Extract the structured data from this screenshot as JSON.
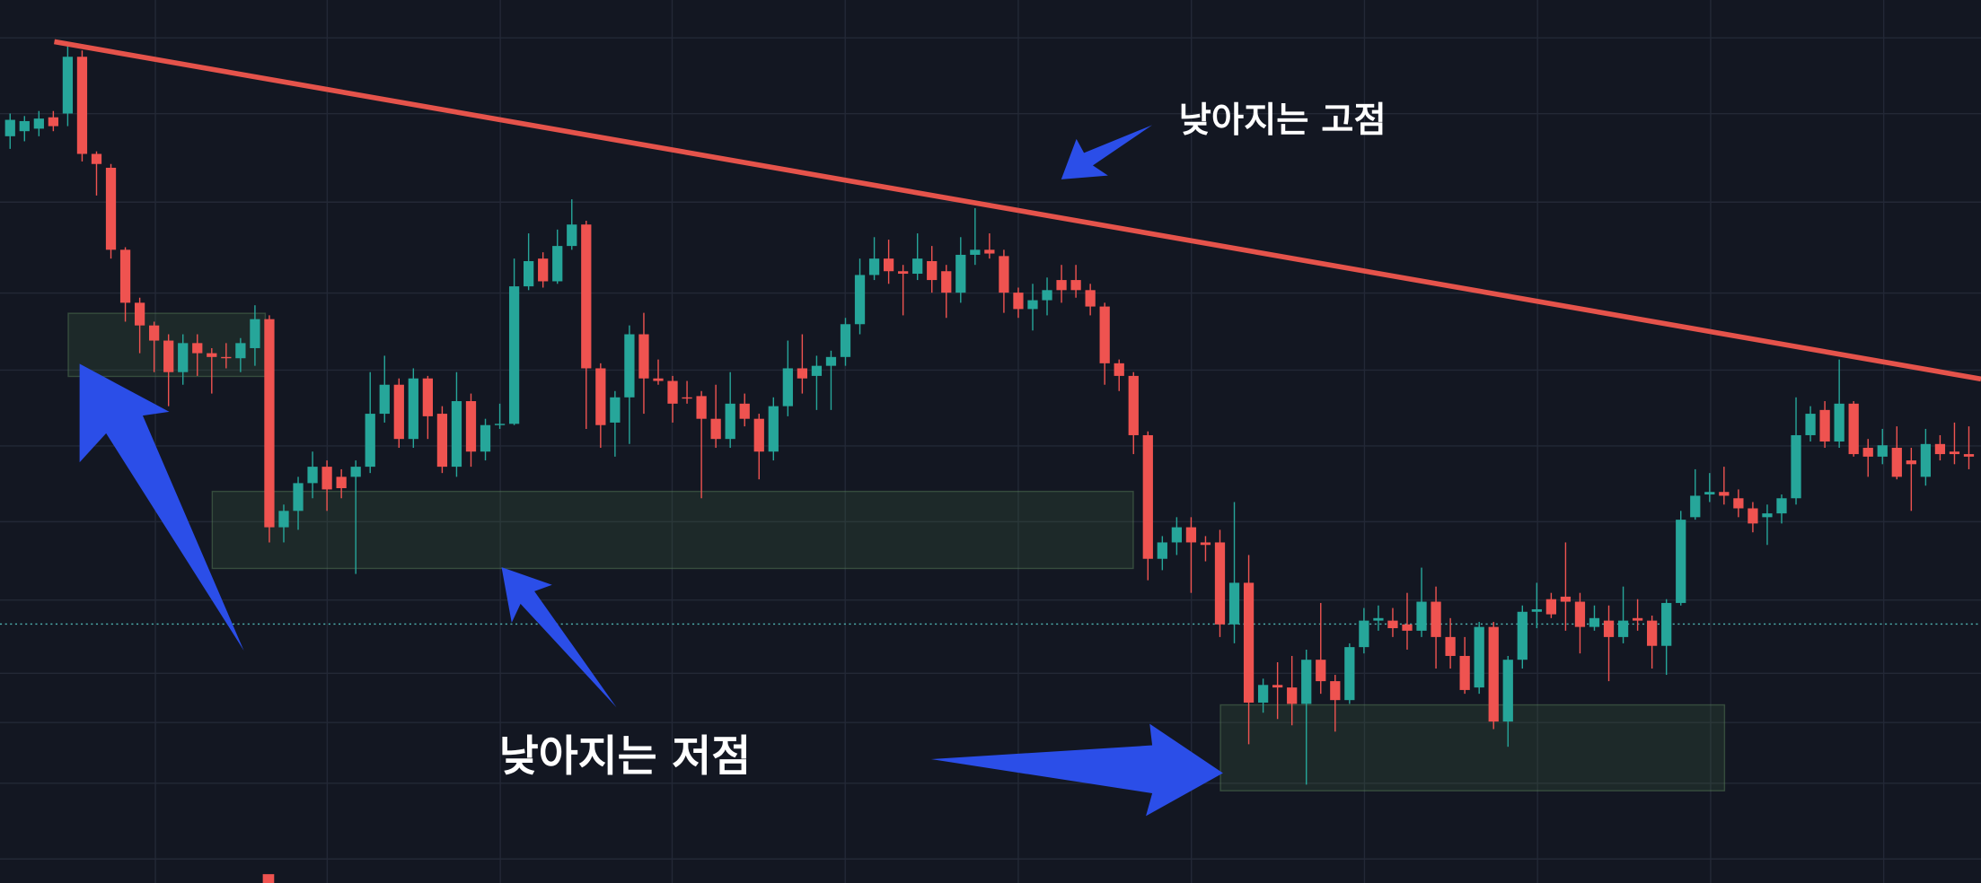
{
  "chart_data": {
    "type": "candlestick",
    "annotations": [
      "낮아지는 고점",
      "낮아지는 저점"
    ],
    "up_color": "#26a69a",
    "down_color": "#ef5350",
    "ylim": [
      0,
      700
    ],
    "open": [
      592,
      596,
      598,
      607,
      610,
      655,
      578,
      567,
      502,
      460,
      442,
      430,
      405,
      428,
      420,
      417,
      416,
      424,
      447,
      282,
      295,
      317,
      330,
      322,
      322,
      330,
      372,
      395,
      352,
      400,
      372,
      330,
      382,
      342,
      363,
      364,
      473,
      495,
      477,
      505,
      522,
      408,
      365,
      385,
      435,
      400,
      398,
      385,
      386,
      368,
      352,
      380,
      368,
      342,
      378,
      408,
      402,
      410,
      417,
      443,
      482,
      495,
      485,
      483,
      493,
      485,
      468,
      498,
      502,
      497,
      468,
      455,
      462,
      478,
      478,
      470,
      457,
      412,
      402,
      355,
      257,
      270,
      282,
      270,
      270,
      205,
      238,
      143,
      157,
      155,
      142,
      177,
      160,
      145,
      187,
      208,
      208,
      205,
      200,
      223,
      195,
      180,
      155,
      203,
      128,
      177,
      215,
      225,
      227,
      223,
      203,
      208,
      195,
      210,
      208,
      188,
      222,
      290,
      308,
      310,
      305,
      297,
      290,
      293,
      305,
      355,
      375,
      350,
      380,
      345,
      338,
      345,
      335,
      322,
      348,
      342,
      340
    ],
    "high": [
      610,
      608,
      612,
      612,
      665,
      660,
      580,
      570,
      504,
      464,
      445,
      435,
      435,
      435,
      424,
      428,
      432,
      458,
      450,
      300,
      322,
      342,
      335,
      328,
      335,
      405,
      418,
      400,
      408,
      402,
      378,
      405,
      388,
      368,
      380,
      495,
      515,
      500,
      518,
      542,
      525,
      412,
      390,
      442,
      452,
      415,
      402,
      398,
      390,
      395,
      405,
      388,
      372,
      385,
      430,
      435,
      418,
      422,
      448,
      495,
      512,
      510,
      490,
      515,
      505,
      490,
      512,
      535,
      515,
      502,
      472,
      475,
      480,
      490,
      490,
      475,
      460,
      415,
      405,
      358,
      275,
      290,
      290,
      275,
      280,
      302,
      260,
      162,
      175,
      180,
      185,
      222,
      165,
      190,
      218,
      220,
      218,
      230,
      250,
      235,
      210,
      195,
      207,
      207,
      180,
      220,
      238,
      230,
      270,
      230,
      220,
      220,
      235,
      225,
      212,
      225,
      295,
      328,
      325,
      330,
      312,
      302,
      300,
      308,
      385,
      378,
      382,
      415,
      382,
      352,
      360,
      362,
      345,
      360,
      355,
      365,
      362
    ],
    "low": [
      582,
      588,
      592,
      596,
      600,
      572,
      545,
      495,
      445,
      420,
      405,
      378,
      395,
      402,
      388,
      408,
      405,
      410,
      270,
      270,
      280,
      305,
      295,
      305,
      245,
      325,
      365,
      345,
      345,
      352,
      325,
      322,
      330,
      335,
      360,
      363,
      470,
      472,
      475,
      502,
      360,
      345,
      338,
      348,
      372,
      395,
      365,
      380,
      305,
      345,
      345,
      362,
      320,
      335,
      370,
      388,
      375,
      375,
      410,
      435,
      478,
      475,
      450,
      478,
      468,
      448,
      460,
      490,
      495,
      452,
      448,
      438,
      450,
      460,
      464,
      450,
      395,
      390,
      340,
      240,
      248,
      260,
      230,
      255,
      195,
      190,
      110,
      135,
      130,
      125,
      78,
      150,
      120,
      142,
      182,
      200,
      195,
      185,
      195,
      170,
      170,
      150,
      150,
      122,
      108,
      170,
      202,
      210,
      200,
      182,
      200,
      160,
      190,
      200,
      170,
      165,
      220,
      288,
      302,
      300,
      290,
      278,
      268,
      285,
      300,
      350,
      345,
      345,
      338,
      322,
      332,
      320,
      295,
      315,
      335,
      332,
      328
    ],
    "close": [
      605,
      604,
      606,
      600,
      655,
      578,
      570,
      502,
      460,
      442,
      430,
      405,
      428,
      420,
      417,
      416,
      428,
      447,
      282,
      295,
      317,
      330,
      312,
      313,
      330,
      372,
      395,
      352,
      400,
      370,
      330,
      382,
      342,
      363,
      364,
      473,
      493,
      477,
      505,
      522,
      408,
      363,
      385,
      435,
      400,
      398,
      380,
      384,
      368,
      352,
      380,
      368,
      342,
      378,
      408,
      400,
      410,
      417,
      443,
      482,
      495,
      485,
      483,
      495,
      478,
      468,
      498,
      502,
      499,
      468,
      455,
      462,
      470,
      470,
      470,
      457,
      412,
      402,
      355,
      257,
      270,
      282,
      270,
      268,
      205,
      238,
      143,
      157,
      155,
      142,
      177,
      160,
      145,
      187,
      208,
      210,
      202,
      200,
      223,
      195,
      180,
      153,
      203,
      128,
      177,
      215,
      217,
      213,
      223,
      203,
      210,
      195,
      208,
      208,
      188,
      222,
      288,
      307,
      310,
      307,
      297,
      285,
      293,
      305,
      355,
      372,
      350,
      380,
      340,
      338,
      347,
      322,
      332,
      348,
      340,
      340,
      338
    ]
  }
}
